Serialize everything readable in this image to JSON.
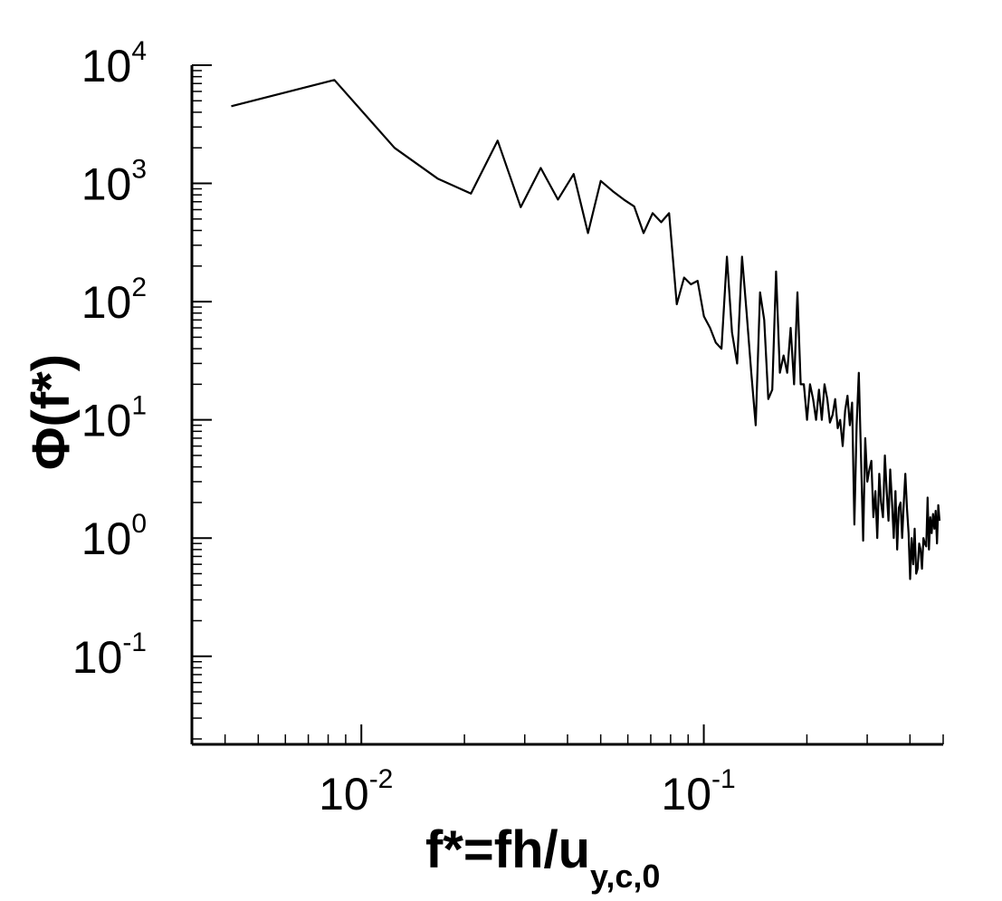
{
  "chart_data": {
    "type": "line",
    "xscale": "log",
    "yscale": "log",
    "xlim": [
      0.0032,
      0.5
    ],
    "ylim": [
      0.018,
      10000
    ],
    "grid": false,
    "xlabel": {
      "main": "f*=fh/u",
      "sub": "y,c,0"
    },
    "ylabel": "Φ(f*)",
    "x_ticks": [
      {
        "value": 0.01,
        "base": "10",
        "exp": "-2"
      },
      {
        "value": 0.1,
        "base": "10",
        "exp": "-1"
      }
    ],
    "y_ticks": [
      {
        "value": 10000,
        "base": "10",
        "exp": "4"
      },
      {
        "value": 1000,
        "base": "10",
        "exp": "3"
      },
      {
        "value": 100,
        "base": "10",
        "exp": "2"
      },
      {
        "value": 10,
        "base": "10",
        "exp": "1"
      },
      {
        "value": 1,
        "base": "10",
        "exp": "0"
      },
      {
        "value": 0.1,
        "base": "10",
        "exp": "-1"
      }
    ],
    "series": [
      {
        "color": "#000000",
        "x": [
          0.00417,
          0.00834,
          0.0125,
          0.0167,
          0.0209,
          0.025,
          0.0292,
          0.0334,
          0.0375,
          0.0417,
          0.0459,
          0.05,
          0.0542,
          0.0584,
          0.0626,
          0.0667,
          0.0709,
          0.0751,
          0.0792,
          0.0834,
          0.0876,
          0.0917,
          0.0959,
          0.1001,
          0.1043,
          0.1084,
          0.1126,
          0.1168,
          0.1209,
          0.1251,
          0.1293,
          0.1334,
          0.1376,
          0.1418,
          0.146,
          0.1501,
          0.1543,
          0.1585,
          0.1626,
          0.1668,
          0.171,
          0.1752,
          0.1793,
          0.1835,
          0.1877,
          0.1918,
          0.196,
          0.2002,
          0.2043,
          0.2085,
          0.2127,
          0.2169,
          0.221,
          0.2252,
          0.2294,
          0.2335,
          0.2377,
          0.2419,
          0.246,
          0.2502,
          0.2544,
          0.2586,
          0.2627,
          0.2669,
          0.2711,
          0.2752,
          0.2794,
          0.2836,
          0.2877,
          0.2919,
          0.2961,
          0.3003,
          0.3044,
          0.3086,
          0.3128,
          0.3169,
          0.3211,
          0.3253,
          0.3294,
          0.3336,
          0.3378,
          0.342,
          0.3461,
          0.3503,
          0.3545,
          0.3586,
          0.3628,
          0.367,
          0.3711,
          0.3753,
          0.3795,
          0.3837,
          0.3878,
          0.392,
          0.3962,
          0.4003,
          0.4045,
          0.4087,
          0.4128,
          0.417,
          0.4212,
          0.4254,
          0.4295,
          0.4337,
          0.4379,
          0.442,
          0.4462,
          0.4504,
          0.4545,
          0.4587,
          0.4629,
          0.4671,
          0.4712,
          0.4754,
          0.4796,
          0.4837,
          0.4879
        ],
        "y": [
          4500,
          7500,
          2000,
          1100,
          820,
          2300,
          630,
          1350,
          730,
          1200,
          380,
          1050,
          860,
          730,
          640,
          380,
          560,
          470,
          560,
          95,
          160,
          140,
          150,
          75,
          60,
          45,
          40,
          240,
          55,
          30,
          240,
          80,
          25,
          9,
          120,
          70,
          15,
          18,
          180,
          25,
          35,
          25,
          60,
          20,
          120,
          20,
          20,
          10,
          20,
          15,
          10,
          18,
          10,
          20,
          15,
          9.5,
          11,
          15,
          8.5,
          10,
          6,
          12,
          16,
          9,
          14,
          1.3,
          9,
          25,
          5,
          0.95,
          7,
          3,
          3.8,
          4.5,
          1.5,
          2.5,
          1,
          3.5,
          2,
          1.5,
          5,
          2.5,
          1.4,
          3.8,
          2,
          1,
          2.5,
          0.8,
          1.8,
          2,
          1,
          2,
          3.5,
          1.8,
          1.1,
          0.45,
          1,
          0.6,
          1.2,
          0.5,
          0.55,
          0.9,
          0.8,
          0.55,
          1,
          0.9,
          0.85,
          2.2,
          0.8,
          1.5,
          1.1,
          1.6,
          1.2,
          1.7,
          0.9,
          1.9,
          1.4
        ]
      }
    ]
  }
}
